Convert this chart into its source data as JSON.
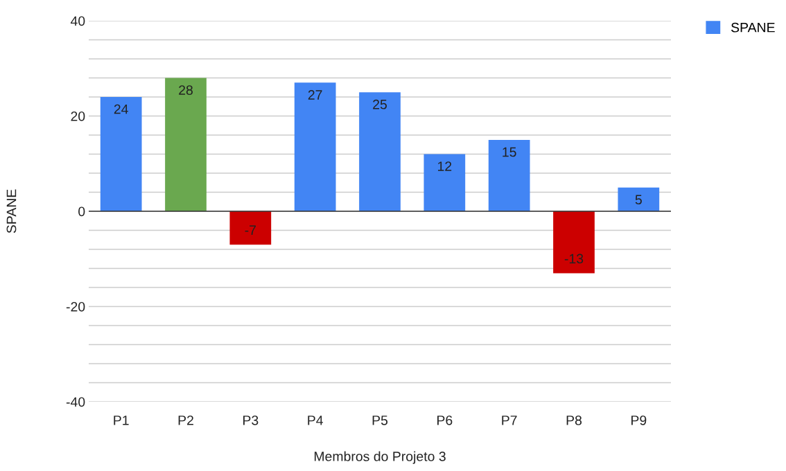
{
  "chart_data": {
    "type": "bar",
    "xlabel": "Membros do Projeto 3",
    "ylabel": "SPANE",
    "categories": [
      "P1",
      "P2",
      "P3",
      "P4",
      "P5",
      "P6",
      "P7",
      "P8",
      "P9"
    ],
    "series": [
      {
        "name": "SPANE",
        "color": "#4285f4",
        "values": [
          24,
          28,
          -7,
          27,
          25,
          12,
          15,
          -13,
          5
        ],
        "colors": [
          "#4285f4",
          "#6aa84f",
          "#cc0000",
          "#4285f4",
          "#4285f4",
          "#4285f4",
          "#4285f4",
          "#cc0000",
          "#4285f4"
        ]
      }
    ],
    "ylim": [
      -40,
      40
    ],
    "yticks": [
      -40,
      {
        "value": -36,
        "label": null
      },
      {
        "value": -32,
        "label": null
      },
      {
        "value": -28,
        "label": null
      },
      {
        "value": -24,
        "label": null
      },
      -20,
      {
        "value": -16,
        "label": null
      },
      {
        "value": -12,
        "label": null
      },
      {
        "value": -8,
        "label": null
      },
      {
        "value": -4,
        "label": null
      },
      0,
      {
        "value": 4,
        "label": null
      },
      {
        "value": 8,
        "label": null
      },
      {
        "value": 12,
        "label": null
      },
      {
        "value": 16,
        "label": null
      },
      20,
      {
        "value": 24,
        "label": null
      },
      {
        "value": 28,
        "label": null
      },
      {
        "value": 32,
        "label": null
      },
      {
        "value": 36,
        "label": null
      },
      40
    ],
    "grid": "y",
    "legend": "top right",
    "data_labels": true
  }
}
